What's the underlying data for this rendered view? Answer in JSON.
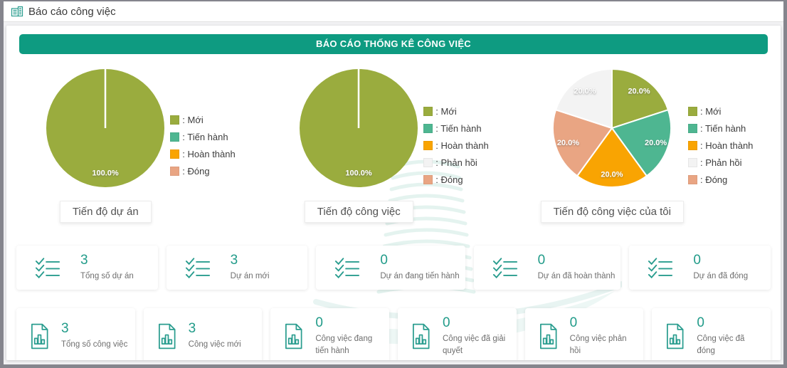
{
  "header": {
    "title": "Báo cáo công việc",
    "icon": "report-building-icon"
  },
  "banner": {
    "title": "BÁO CÁO THỐNG KÊ CÔNG VIỆC"
  },
  "colors": {
    "frame": "#85858d",
    "accent_teal": "#0e9b81",
    "icon_teal": "#2a9d8f",
    "value_teal": "#219b89",
    "status_new": "#9aac3e",
    "status_in_progress": "#4eb691",
    "status_completed": "#f9a402",
    "status_feedback": "#f3f3f3",
    "status_closed": "#e9a583"
  },
  "chart_data": [
    {
      "type": "pie",
      "title": "Tiến độ dự án",
      "legend_position": "right",
      "legend": [
        {
          "label": "Mới",
          "color": "#9aac3e"
        },
        {
          "label": "Tiến hành",
          "color": "#4eb691"
        },
        {
          "label": "Hoàn thành",
          "color": "#f9a402"
        },
        {
          "label": "Đóng",
          "color": "#e9a583"
        }
      ],
      "slices": [
        {
          "label": "Mới",
          "value": 100.0,
          "color": "#9aac3e"
        },
        {
          "label": "Tiến hành",
          "value": 0,
          "color": "#4eb691"
        },
        {
          "label": "Hoàn thành",
          "value": 0,
          "color": "#f9a402"
        },
        {
          "label": "Đóng",
          "value": 0,
          "color": "#e9a583"
        }
      ]
    },
    {
      "type": "pie",
      "title": "Tiến độ công việc",
      "legend_position": "right",
      "legend": [
        {
          "label": "Mới",
          "color": "#9aac3e"
        },
        {
          "label": "Tiến hành",
          "color": "#4eb691"
        },
        {
          "label": "Hoàn thành",
          "color": "#f9a402"
        },
        {
          "label": "Phản hồi",
          "color": "#f3f3f3"
        },
        {
          "label": "Đóng",
          "color": "#e9a583"
        }
      ],
      "slices": [
        {
          "label": "Mới",
          "value": 100.0,
          "color": "#9aac3e"
        },
        {
          "label": "Tiến hành",
          "value": 0,
          "color": "#4eb691"
        },
        {
          "label": "Hoàn thành",
          "value": 0,
          "color": "#f9a402"
        },
        {
          "label": "Phản hồi",
          "value": 0,
          "color": "#f3f3f3"
        },
        {
          "label": "Đóng",
          "value": 0,
          "color": "#e9a583"
        }
      ]
    },
    {
      "type": "pie",
      "title": "Tiến độ công việc của tôi",
      "legend_position": "right",
      "legend": [
        {
          "label": "Mới",
          "color": "#9aac3e"
        },
        {
          "label": "Tiến hành",
          "color": "#4eb691"
        },
        {
          "label": "Hoàn thành",
          "color": "#f9a402"
        },
        {
          "label": "Phản hồi",
          "color": "#f3f3f3"
        },
        {
          "label": "Đóng",
          "color": "#e9a583"
        }
      ],
      "slices": [
        {
          "label": "Mới",
          "value": 20.0,
          "color": "#9aac3e"
        },
        {
          "label": "Tiến hành",
          "value": 20.0,
          "color": "#4eb691"
        },
        {
          "label": "Hoàn thành",
          "value": 20.0,
          "color": "#f9a402"
        },
        {
          "label": "Đóng",
          "value": 20.0,
          "color": "#e9a583"
        },
        {
          "label": "Phản hồi",
          "value": 20.0,
          "color": "#f3f3f3"
        }
      ]
    }
  ],
  "project_stats": [
    {
      "value": "3",
      "label": "Tổng số dự án",
      "icon": "checklist-icon"
    },
    {
      "value": "3",
      "label": "Dự án mới",
      "icon": "checklist-icon"
    },
    {
      "value": "0",
      "label": "Dự án đang tiến hành",
      "icon": "checklist-icon"
    },
    {
      "value": "0",
      "label": "Dự án đã hoàn thành",
      "icon": "checklist-icon"
    },
    {
      "value": "0",
      "label": "Dự án đã đóng",
      "icon": "checklist-icon"
    }
  ],
  "task_stats": [
    {
      "value": "3",
      "label": "Tổng số công việc",
      "icon": "document-chart-icon"
    },
    {
      "value": "3",
      "label": "Công việc mới",
      "icon": "document-chart-icon"
    },
    {
      "value": "0",
      "label": "Công việc đang tiến hành",
      "icon": "document-chart-icon"
    },
    {
      "value": "0",
      "label": "Công việc đã giải quyết",
      "icon": "document-chart-icon"
    },
    {
      "value": "0",
      "label": "Công việc phản hồi",
      "icon": "document-chart-icon"
    },
    {
      "value": "0",
      "label": "Công việc đã đóng",
      "icon": "document-chart-icon"
    }
  ]
}
